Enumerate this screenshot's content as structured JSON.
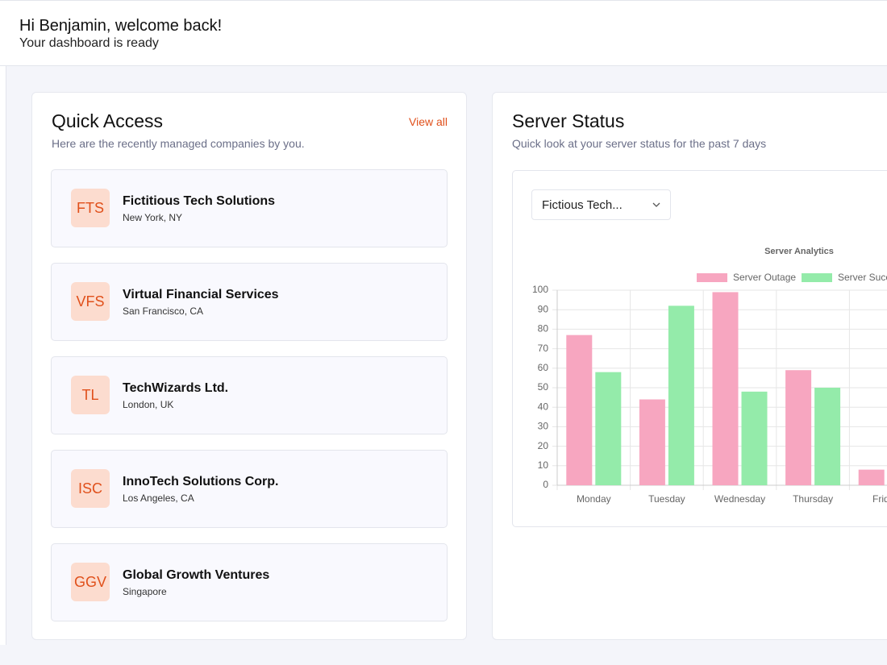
{
  "header": {
    "greeting": "Hi Benjamin, welcome back!",
    "subtitle": "Your dashboard is ready"
  },
  "quick_access": {
    "title": "Quick Access",
    "link": "View all",
    "subtitle": "Here are the recently managed companies by you.",
    "companies": [
      {
        "initials": "FTS",
        "name": "Fictitious Tech Solutions",
        "location": "New York, NY"
      },
      {
        "initials": "VFS",
        "name": "Virtual Financial Services",
        "location": "San Francisco, CA"
      },
      {
        "initials": "TL",
        "name": "TechWizards Ltd.",
        "location": "London, UK"
      },
      {
        "initials": "ISC",
        "name": "InnoTech Solutions Corp.",
        "location": "Los Angeles, CA"
      },
      {
        "initials": "GGV",
        "name": "Global Growth Ventures",
        "location": "Singapore"
      }
    ]
  },
  "server_status": {
    "title": "Server Status",
    "subtitle": "Quick look at your server status for the past 7 days",
    "dropdown": "Fictious Tech...",
    "chart_data": {
      "type": "bar",
      "title": "Server Analytics",
      "categories": [
        "Monday",
        "Tuesday",
        "Wednesday",
        "Thursday",
        "Friday"
      ],
      "series": [
        {
          "name": "Server Outage",
          "color": "#f7a6c0",
          "values": [
            77,
            44,
            99,
            59,
            8
          ]
        },
        {
          "name": "Server Success",
          "color": "#94ebaa",
          "values": [
            58,
            92,
            48,
            50,
            null
          ]
        }
      ],
      "ylim": [
        0,
        100
      ],
      "yticks": [
        0,
        10,
        20,
        30,
        40,
        50,
        60,
        70,
        80,
        90,
        100
      ],
      "grid": true
    }
  }
}
